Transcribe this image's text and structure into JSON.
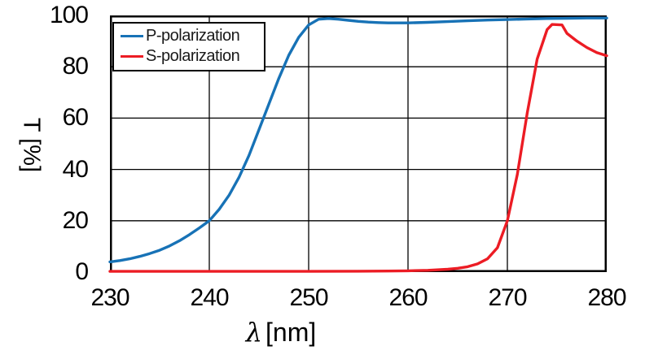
{
  "figure": {
    "background": "#ffffff",
    "grid_color": "#000000",
    "border_color": "#000000"
  },
  "axes": {
    "y_label": "T [%]",
    "x_label_symbol": "λ",
    "x_label_unit": "[nm]"
  },
  "chart_data": {
    "type": "line",
    "title": "",
    "xlabel": "λ [nm]",
    "ylabel": "T [%]",
    "xlim": [
      230,
      280
    ],
    "ylim": [
      0,
      100
    ],
    "x_ticks": [
      230,
      240,
      250,
      260,
      270,
      280
    ],
    "y_ticks": [
      0,
      20,
      40,
      60,
      80,
      100
    ],
    "grid": true,
    "legend_position": "top-left",
    "series": [
      {
        "name": "P-polarization",
        "color": "#1772B6",
        "x": [
          230,
          231,
          232,
          233,
          234,
          235,
          236,
          237,
          238,
          239,
          240,
          241,
          242,
          243,
          244,
          245,
          246,
          247,
          248,
          249,
          250,
          251,
          252,
          253,
          254,
          255,
          256,
          257,
          258,
          259,
          260,
          262,
          264,
          266,
          268,
          270,
          272,
          274,
          276,
          278,
          280
        ],
        "values": [
          4,
          4.5,
          5.2,
          6.1,
          7.2,
          8.5,
          10.2,
          12.2,
          14.6,
          17.2,
          20,
          24.5,
          30,
          37,
          45.5,
          55.5,
          65.5,
          75.5,
          84.5,
          91.5,
          96.3,
          98.5,
          98.8,
          98.5,
          98.1,
          97.7,
          97.4,
          97.2,
          97.1,
          97.1,
          97.1,
          97.3,
          97.6,
          97.9,
          98.2,
          98.4,
          98.6,
          98.8,
          98.9,
          99,
          99
        ]
      },
      {
        "name": "S-polarization",
        "color": "#EC1C24",
        "x": [
          230,
          240,
          250,
          255,
          258,
          260,
          262,
          264,
          265,
          266,
          267,
          268,
          269,
          270,
          271,
          272,
          273,
          274,
          274.5,
          275.5,
          276,
          277,
          278,
          279,
          280
        ],
        "values": [
          0.3,
          0.3,
          0.3,
          0.35,
          0.4,
          0.5,
          0.7,
          1.1,
          1.5,
          2.1,
          3.2,
          5.2,
          9.5,
          20,
          38,
          62,
          83,
          94.5,
          96.5,
          96.3,
          93,
          90,
          87.5,
          85.5,
          84.3
        ]
      }
    ]
  }
}
